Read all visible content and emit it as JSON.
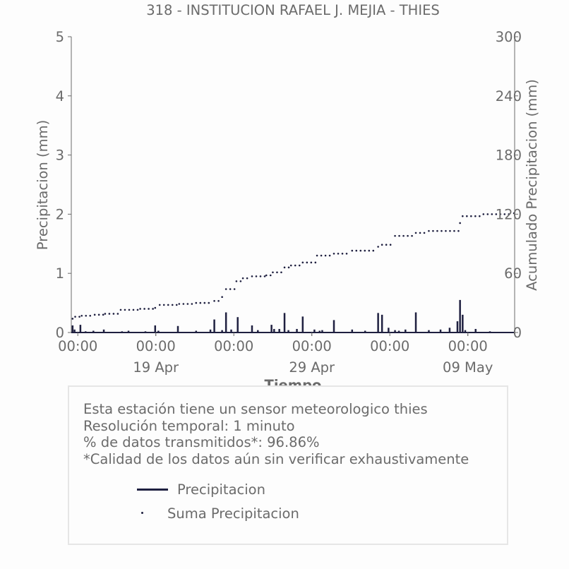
{
  "chart_data": {
    "type": "line",
    "title": "318 - INSTITUCION RAFAEL J. MEJIA - THIES",
    "xlabel": "Tiempo",
    "ylabel_left": "Precipitacion (mm)",
    "ylabel_right": "Acumulado Precipitacion (mm)",
    "ylim_left": [
      0,
      5
    ],
    "ylim_right": [
      0,
      300
    ],
    "yticks_left": [
      "0",
      "1",
      "2",
      "3",
      "4",
      "5"
    ],
    "yticks_right": [
      "0",
      "60",
      "120",
      "180",
      "240",
      "300"
    ],
    "xlim": [
      "2024-04-13 14:00",
      "2024-05-12 00:00"
    ],
    "xticks_major": [
      {
        "x": "2024-04-14 00:00",
        "label": "00:00"
      },
      {
        "x": "2024-04-19 00:00",
        "label": "00:00"
      },
      {
        "x": "2024-04-24 00:00",
        "label": "00:00"
      },
      {
        "x": "2024-04-29 00:00",
        "label": "00:00"
      },
      {
        "x": "2024-05-04 00:00",
        "label": "00:00"
      },
      {
        "x": "2024-05-09 00:00",
        "label": "00:00"
      }
    ],
    "xticks_minor": [
      {
        "x": "2024-04-19 00:00",
        "label": "19 Apr"
      },
      {
        "x": "2024-04-29 00:00",
        "label": "29 Apr"
      },
      {
        "x": "2024-05-09 00:00",
        "label": "09 May"
      }
    ],
    "series": [
      {
        "name": "Precipitacion",
        "axis": "left",
        "style": "line",
        "color": "#1f2040",
        "x": [
          "2024-04-13 16:00",
          "2024-04-13 19:00",
          "2024-04-14 04:00",
          "2024-04-14 12:00",
          "2024-04-15 00:00",
          "2024-04-15 16:00",
          "2024-04-16 20:00",
          "2024-04-17 06:00",
          "2024-04-18 08:00",
          "2024-04-18 23:00",
          "2024-04-19 04:00",
          "2024-04-20 10:00",
          "2024-04-21 14:00",
          "2024-04-22 12:00",
          "2024-04-22 18:00",
          "2024-04-23 06:00",
          "2024-04-23 12:00",
          "2024-04-23 20:00",
          "2024-04-24 06:00",
          "2024-04-25 04:00",
          "2024-04-25 13:00",
          "2024-04-26 10:00",
          "2024-04-26 14:00",
          "2024-04-26 22:00",
          "2024-04-27 06:00",
          "2024-04-27 12:00",
          "2024-04-28 01:00",
          "2024-04-28 10:00",
          "2024-04-29 04:00",
          "2024-04-29 12:00",
          "2024-04-29 16:00",
          "2024-04-30 10:00",
          "2024-05-01 14:00",
          "2024-05-02 10:00",
          "2024-05-03 06:00",
          "2024-05-03 12:00",
          "2024-05-03 22:00",
          "2024-05-04 08:00",
          "2024-05-04 14:00",
          "2024-05-05 00:00",
          "2024-05-05 16:00",
          "2024-05-06 12:00",
          "2024-05-07 06:00",
          "2024-05-07 20:00",
          "2024-05-08 08:00",
          "2024-05-08 12:00",
          "2024-05-08 16:00",
          "2024-05-08 20:00",
          "2024-05-09 12:00",
          "2024-05-10 10:00"
        ],
        "values": [
          0.12,
          0.05,
          0.13,
          0.02,
          0.03,
          0.05,
          0.02,
          0.03,
          0.02,
          0.12,
          0.03,
          0.11,
          0.03,
          0.05,
          0.22,
          0.04,
          0.34,
          0.05,
          0.26,
          0.12,
          0.04,
          0.13,
          0.06,
          0.06,
          0.33,
          0.04,
          0.06,
          0.27,
          0.05,
          0.03,
          0.04,
          0.21,
          0.05,
          0.03,
          0.33,
          0.3,
          0.08,
          0.04,
          0.03,
          0.05,
          0.34,
          0.04,
          0.05,
          0.08,
          0.19,
          0.55,
          0.3,
          0.04,
          0.06,
          0.02
        ]
      },
      {
        "name": "Suma Precipitacion",
        "axis": "right",
        "style": "dots",
        "color": "#1f2040",
        "x": [
          "2024-04-13 16:00",
          "2024-04-13 20:00",
          "2024-04-14 06:00",
          "2024-04-15 02:00",
          "2024-04-15 18:00",
          "2024-04-16 18:00",
          "2024-04-18 00:00",
          "2024-04-18 23:00",
          "2024-04-19 06:00",
          "2024-04-20 12:00",
          "2024-04-21 14:00",
          "2024-04-22 18:00",
          "2024-04-23 06:00",
          "2024-04-23 12:00",
          "2024-04-24 04:00",
          "2024-04-24 14:00",
          "2024-04-25 04:00",
          "2024-04-26 02:00",
          "2024-04-26 12:00",
          "2024-04-27 06:00",
          "2024-04-27 16:00",
          "2024-04-28 10:00",
          "2024-04-29 08:00",
          "2024-04-30 10:00",
          "2024-05-01 14:00",
          "2024-05-03 06:00",
          "2024-05-03 12:00",
          "2024-05-04 08:00",
          "2024-05-05 16:00",
          "2024-05-06 12:00",
          "2024-05-08 12:00",
          "2024-05-08 16:00",
          "2024-05-10 00:00",
          "2024-05-11 23:00"
        ],
        "values": [
          14,
          16,
          17,
          18,
          19,
          23,
          24,
          25,
          28,
          29,
          30,
          32,
          36,
          44,
          52,
          55,
          57,
          58,
          61,
          66,
          68,
          71,
          78,
          80,
          83,
          87,
          89,
          98,
          101,
          103,
          111,
          118,
          120,
          121
        ]
      }
    ],
    "grid": false,
    "legend": "bottom-box"
  },
  "info": {
    "line1": "Esta estación tiene un sensor meteorologico thies",
    "line2": "Resolución temporal: 1 minuto",
    "line3": "% de datos transmitidos*: 96.86%",
    "line4": "*Calidad de los datos aún sin verificar exhaustivamente"
  },
  "legend": {
    "item1": "Precipitacion",
    "item2": "Suma Precipitacion"
  },
  "colors": {
    "series": "#1f2040",
    "text": "#6b6b6b",
    "axis": "#6b6b6b",
    "box_border": "#e6e6e6"
  }
}
